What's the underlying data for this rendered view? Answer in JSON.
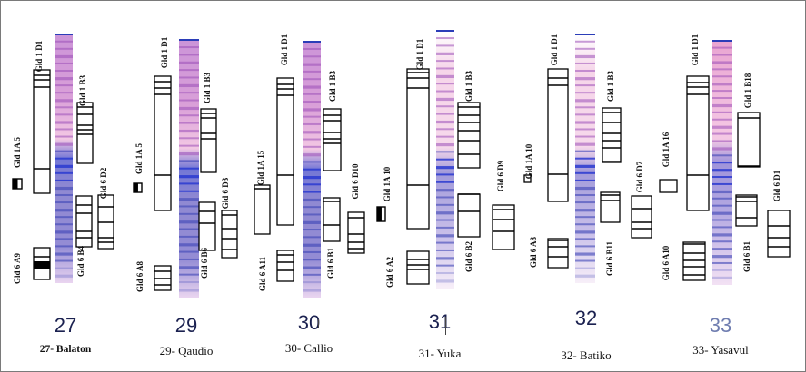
{
  "figure": {
    "type": "gluten-subunit electrophoresis diagram",
    "colors": {
      "gel_pink": "#e8a7d6",
      "gel_blue": "#3d4fc4",
      "gel_purple": "#7b55c2",
      "frame": "#7a7a7a",
      "line": "#000000"
    }
  },
  "lanes": [
    {
      "number": "27",
      "name": "27- Balaton",
      "loci": {
        "gld1a": "Gld 1A 5",
        "gld1d": "Gld 1 D1",
        "gld1b": "Gld 1 B3",
        "gld6a": "Gld 6 A9",
        "gld6b": "Gld 6 B4",
        "gld6d": "Gld 6 D2"
      }
    },
    {
      "number": "29",
      "name": "29- Qaudio",
      "loci": {
        "gld1a": "Gld 1A 5",
        "gld1d": "Gld 1 D1",
        "gld1b": "Gld 1 B3",
        "gld6a": "Gld 6 A8",
        "gld6b": "Gld 6 B6",
        "gld6d": "Gld 6 D3"
      }
    },
    {
      "number": "30",
      "name": "30- Callio",
      "loci": {
        "gld1a": "Gld 1A 15",
        "gld1d": "Gld 1 D1",
        "gld1b": "Gld 1 B3",
        "gld6a": "Gld 6 A11",
        "gld6b": "Gld 6 B1",
        "gld6d": "Gld 6 D10"
      }
    },
    {
      "number": "31",
      "name": "31- Yuka",
      "loci": {
        "gld1a": "Gld 1A 10",
        "gld1d": "Gld 1 D1",
        "gld1b": "Gld 1 B3",
        "gld6a": "Gld 6 A2",
        "gld6b": "Gld 6 B2",
        "gld6d": "Gld 6 D9"
      }
    },
    {
      "number": "32",
      "name": "32- Batiko",
      "loci": {
        "gld1a": "Gld 1A 10",
        "gld1d": "Gld 1 D1",
        "gld1b": "Gld 1 B3",
        "gld6a": "Gld 6 A8",
        "gld6b": "Gld 6 B11",
        "gld6d": "Gld 6 D7"
      }
    },
    {
      "number": "33",
      "name": "33- Yasavul",
      "loci": {
        "gld1a": "Gld 1A 16",
        "gld1d": "Gld 1 D1",
        "gld1b": "Gld 1 B18",
        "gld6a": "Gld 6 A10",
        "gld6b": "Gld 6 B1",
        "gld6d": "Gld 6 D1"
      }
    }
  ]
}
